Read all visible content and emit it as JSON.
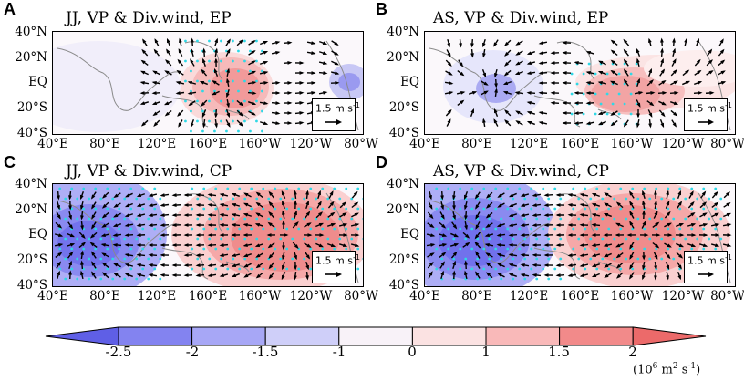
{
  "panels": [
    {
      "letter": "A",
      "title": "JJ, VP & Div.wind, EP"
    },
    {
      "letter": "B",
      "title": "AS, VP & Div.wind, EP"
    },
    {
      "letter": "C",
      "title": "JJ, VP & Div.wind, CP"
    },
    {
      "letter": "D",
      "title": "AS, VP & Div.wind, CP"
    }
  ],
  "lat_labels": [
    "40°N",
    "20°N",
    "EQ",
    "20°S",
    "40°S"
  ],
  "lon_labels": [
    "40°E",
    "80°E",
    "120°E",
    "160°E",
    "160°W",
    "120°W",
    "80°W"
  ],
  "reference_vector": {
    "value": "1.5",
    "unit": "m s",
    "exponent": "-1"
  },
  "colorbar": {
    "ticks": [
      "-2.5",
      "-2",
      "-1.5",
      "-1",
      "0",
      "1",
      "1.5",
      "2"
    ],
    "colors": [
      "#5f5fe6",
      "#8383f0",
      "#a7a7f6",
      "#cfcff9",
      "#f8f2f8",
      "#fbe2e2",
      "#f9b9b9",
      "#f28a8a",
      "#ec6a6a"
    ],
    "unit_base": "(10",
    "unit_exp1": "6",
    "unit_mid": " m",
    "unit_exp2": "2",
    "unit_mid2": " s",
    "unit_exp3": "-1",
    "unit_end": ")"
  },
  "colors": {
    "stipple": "#2fd8e6",
    "coast": "#8a8a8a",
    "arrow": "#000000"
  }
}
